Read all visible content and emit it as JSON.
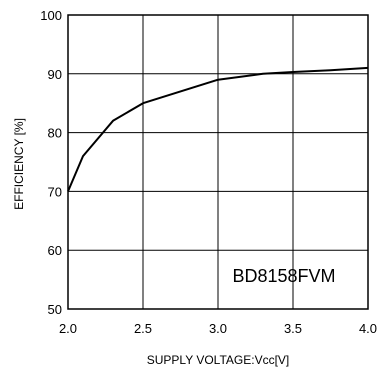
{
  "chart_data": {
    "type": "line",
    "title": "",
    "xlabel": "SUPPLY VOLTAGE:Vcc[V]",
    "ylabel": "EFFICIENCY [%]",
    "xlim": [
      2.0,
      4.0
    ],
    "ylim": [
      50,
      100
    ],
    "xticks": [
      2.0,
      2.5,
      3.0,
      3.5,
      4.0
    ],
    "yticks": [
      50,
      60,
      70,
      80,
      90,
      100
    ],
    "xtick_labels": [
      "2.0",
      "2.5",
      "3.0",
      "3.5",
      "4.0"
    ],
    "ytick_labels": [
      "50",
      "60",
      "70",
      "80",
      "90",
      "100"
    ],
    "grid": true,
    "legend": "none",
    "annotation": "BD8158FVM",
    "series": [
      {
        "x": [
          2.0,
          2.1,
          2.3,
          2.5,
          2.75,
          3.0,
          3.3,
          3.5,
          3.75,
          4.0
        ],
        "y": [
          70,
          76,
          82,
          85,
          87,
          89,
          90,
          90.3,
          90.6,
          91
        ]
      }
    ]
  }
}
